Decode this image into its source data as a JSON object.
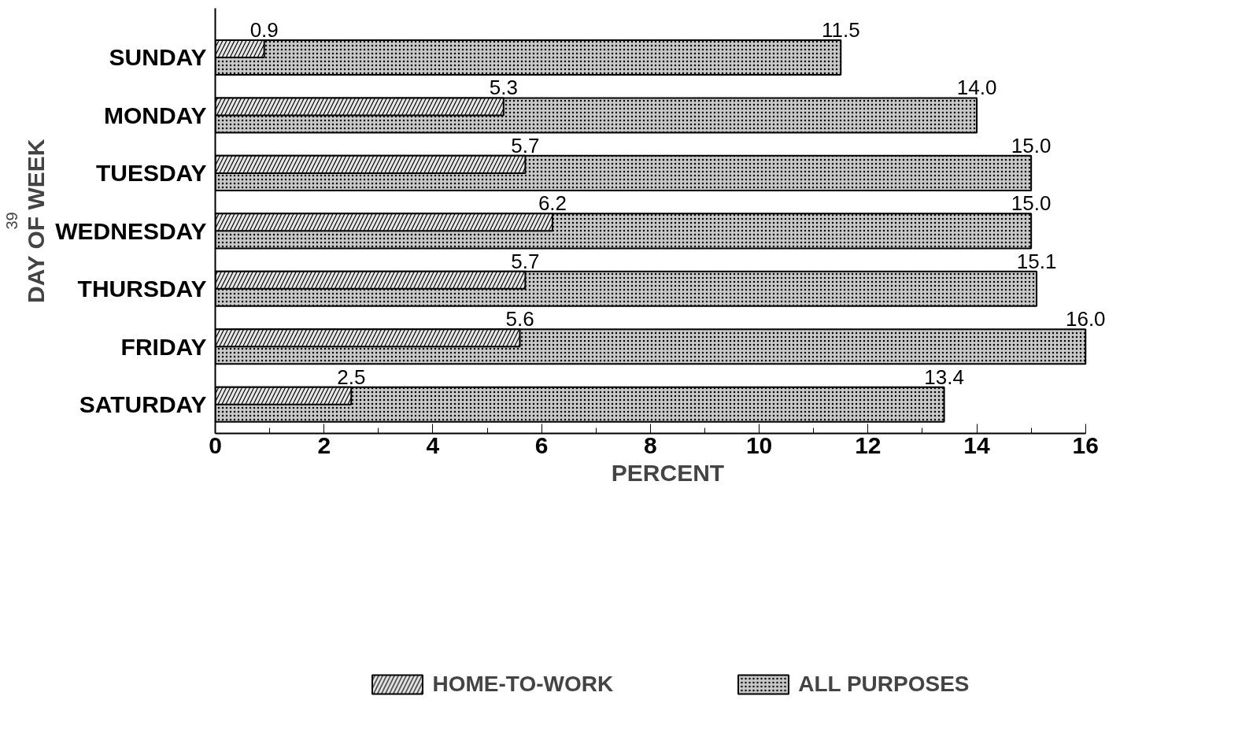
{
  "chart_data": {
    "type": "bar",
    "orientation": "horizontal",
    "xlabel": "PERCENT",
    "ylabel": "DAY OF WEEK",
    "categories": [
      "SUNDAY",
      "MONDAY",
      "TUESDAY",
      "WEDNESDAY",
      "THURSDAY",
      "FRIDAY",
      "SATURDAY"
    ],
    "series": [
      {
        "name": "HOME-TO-WORK",
        "color": "#e6e6e6",
        "values": [
          0.9,
          5.3,
          5.7,
          6.2,
          5.7,
          5.6,
          2.5
        ],
        "value_labels": [
          "0.9",
          "5.3",
          "5.7",
          "6.2",
          "5.7",
          "5.6",
          "2.5"
        ]
      },
      {
        "name": "ALL PURPOSES",
        "color": "#c8c8c8",
        "values": [
          11.5,
          14.0,
          15.0,
          15.0,
          15.1,
          16.0,
          13.4
        ],
        "value_labels": [
          "11.5",
          "14.0",
          "15.0",
          "15.0",
          "15.1",
          "16.0",
          "13.4"
        ]
      }
    ],
    "xlim": [
      0,
      16
    ],
    "xticks": [
      0,
      {
        "value": 1,
        "label": null
      },
      2,
      {
        "value": 3,
        "label": null
      },
      4,
      {
        "value": 5,
        "label": null
      },
      6,
      {
        "value": 7,
        "label": null
      },
      8,
      {
        "value": 9,
        "label": null
      },
      10,
      {
        "value": 11,
        "label": null
      },
      12,
      {
        "value": 13,
        "label": null
      },
      14,
      {
        "value": 15,
        "label": null
      },
      16
    ],
    "grid": false,
    "legend": "bottom",
    "annotations": [
      "39"
    ]
  }
}
